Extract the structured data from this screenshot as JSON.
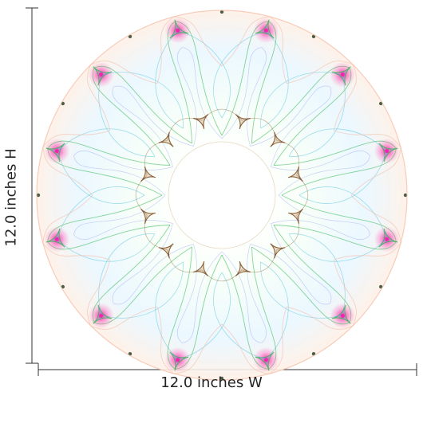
{
  "product": {
    "type": "wall-decal-mockup",
    "motif": "circular-fractal-mandala"
  },
  "dimensions": {
    "width_label": "12.0 inches W",
    "height_label": "12.0 inches H"
  },
  "palette": {
    "outer_ring": "#f3b9a3",
    "green": "#28b44a",
    "cyan": "#35b7d6",
    "magenta": "#ff1aa8",
    "blue": "#6c7ee8",
    "brown": "#7b4a1e",
    "line": "#333333",
    "background": "#ffffff"
  }
}
